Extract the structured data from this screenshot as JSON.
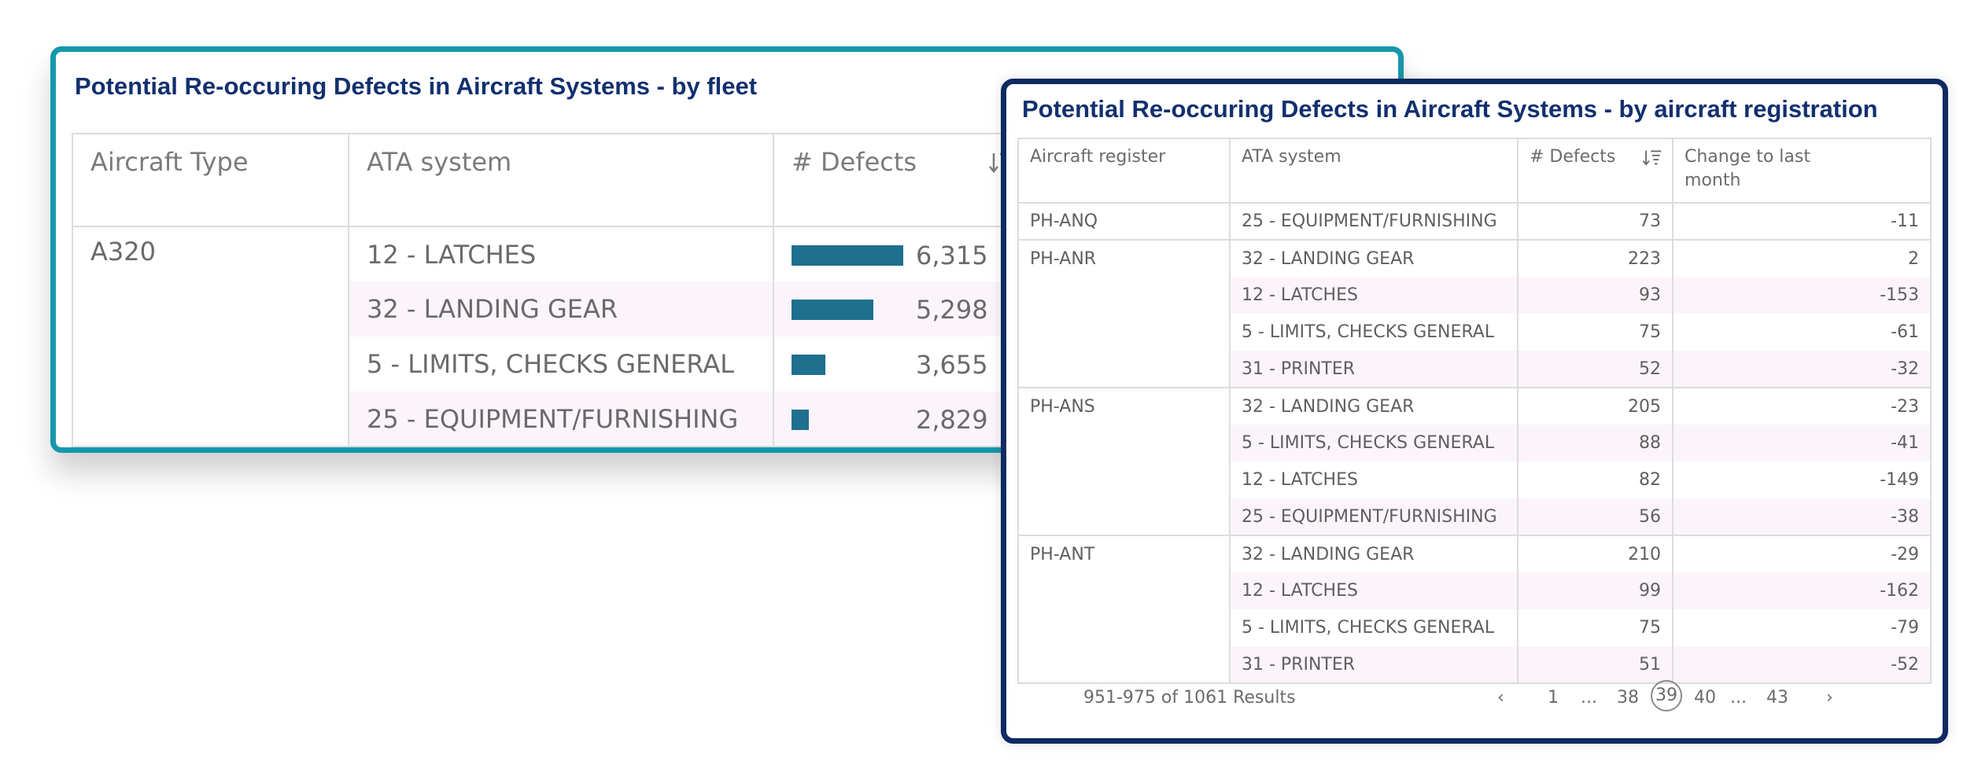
{
  "fleet": {
    "title": "Potential Re-occuring Defects in Aircraft Systems - by fleet",
    "columns": {
      "aircraft_type": "Aircraft Type",
      "ata_system": "ATA system",
      "defects": "# Defects"
    },
    "aircraft_type": "A320",
    "rows": [
      {
        "ata": "12 - LATCHES",
        "defects": "6,315",
        "value": 6315
      },
      {
        "ata": "32 - LANDING GEAR",
        "defects": "5,298",
        "value": 5298
      },
      {
        "ata": "5 - LIMITS, CHECKS GENERAL",
        "defects": "3,655",
        "value": 3655
      },
      {
        "ata": "25 - EQUIPMENT/FURNISHING",
        "defects": "2,829",
        "value": 2829
      }
    ],
    "bar_color": "#1f6f8f"
  },
  "registration": {
    "title": "Potential Re-occuring Defects in Aircraft Systems - by aircraft registration",
    "columns": {
      "register": "Aircraft register",
      "ata_system": "ATA system",
      "defects": "# Defects",
      "change_line1": "Change to last",
      "change_line2": "month"
    },
    "rows": [
      {
        "reg": "PH-ANQ",
        "ata": "25 - EQUIPMENT/FURNISHING",
        "defects": "73",
        "change": "-11"
      },
      {
        "reg": "PH-ANR",
        "ata": "32 - LANDING GEAR",
        "defects": "223",
        "change": "2"
      },
      {
        "reg": "",
        "ata": "12 - LATCHES",
        "defects": "93",
        "change": "-153"
      },
      {
        "reg": "",
        "ata": "5 - LIMITS, CHECKS GENERAL",
        "defects": "75",
        "change": "-61"
      },
      {
        "reg": "",
        "ata": "31 - PRINTER",
        "defects": "52",
        "change": "-32"
      },
      {
        "reg": "PH-ANS",
        "ata": "32 - LANDING GEAR",
        "defects": "205",
        "change": "-23"
      },
      {
        "reg": "",
        "ata": "5 - LIMITS, CHECKS GENERAL",
        "defects": "88",
        "change": "-41"
      },
      {
        "reg": "",
        "ata": "12 - LATCHES",
        "defects": "82",
        "change": "-149"
      },
      {
        "reg": "",
        "ata": "25 - EQUIPMENT/FURNISHING",
        "defects": "56",
        "change": "-38"
      },
      {
        "reg": "PH-ANT",
        "ata": "32 - LANDING GEAR",
        "defects": "210",
        "change": "-29"
      },
      {
        "reg": "",
        "ata": "12 - LATCHES",
        "defects": "99",
        "change": "-162"
      },
      {
        "reg": "",
        "ata": "5 - LIMITS, CHECKS GENERAL",
        "defects": "75",
        "change": "-79"
      },
      {
        "reg": "",
        "ata": "31 - PRINTER",
        "defects": "51",
        "change": "-52"
      }
    ],
    "pagination": {
      "results": "951-975 of 1061 Results",
      "prev": "‹",
      "first": "1",
      "ellipsis1": "...",
      "p38": "38",
      "current": "39",
      "p40": "40",
      "ellipsis2": "...",
      "last": "43",
      "next": "›"
    }
  },
  "colors": {
    "fleet_border": "#1697ac",
    "registration_border": "#0e2a63",
    "title_text": "#12306f"
  }
}
